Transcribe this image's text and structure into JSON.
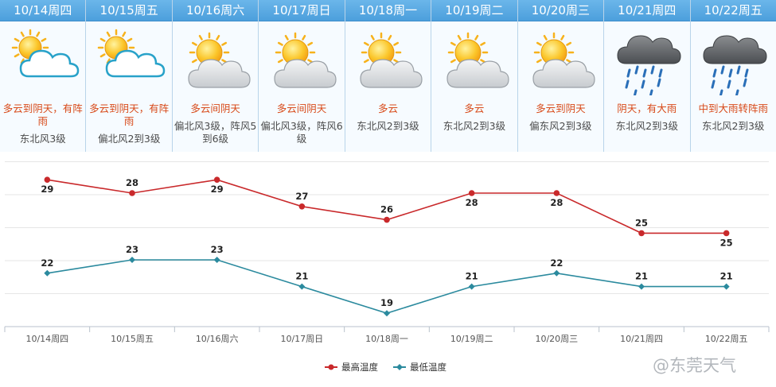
{
  "forecast": [
    {
      "date": "10/14周四",
      "weather": "多云到阴天，有阵雨",
      "wind": "东北风3级",
      "icon": "partly-cloudy-icon"
    },
    {
      "date": "10/15周五",
      "weather": "多云到阴天，有阵雨",
      "wind": "偏北风2到3级",
      "icon": "partly-cloudy-icon"
    },
    {
      "date": "10/16周六",
      "weather": "多云间阴天",
      "wind": "偏北风3级，阵风5到6级",
      "icon": "sun-cloud-icon"
    },
    {
      "date": "10/17周日",
      "weather": "多云间阴天",
      "wind": "偏北风3级，阵风6级",
      "icon": "sun-cloud-icon"
    },
    {
      "date": "10/18周一",
      "weather": "多云",
      "wind": "东北风2到3级",
      "icon": "sun-cloud-icon"
    },
    {
      "date": "10/19周二",
      "weather": "多云",
      "wind": "东北风2到3级",
      "icon": "sun-cloud-icon"
    },
    {
      "date": "10/20周三",
      "weather": "多云到阴天",
      "wind": "偏东风2到3级",
      "icon": "sun-cloud-icon"
    },
    {
      "date": "10/21周四",
      "weather": "阴天，有大雨",
      "wind": "东北风2到3级",
      "icon": "heavy-rain-icon"
    },
    {
      "date": "10/22周五",
      "weather": "中到大雨转阵雨",
      "wind": "东北风2到3级",
      "icon": "heavy-rain-icon"
    }
  ],
  "chart_data": {
    "type": "line",
    "categories": [
      "10/14周四",
      "10/15周五",
      "10/16周六",
      "10/17周日",
      "10/18周一",
      "10/19周二",
      "10/20周三",
      "10/21周四",
      "10/22周五"
    ],
    "series": [
      {
        "name": "最高温度",
        "values": [
          29,
          28,
          29,
          27,
          26,
          28,
          28,
          25,
          25
        ],
        "color": "#c9292b"
      },
      {
        "name": "最低温度",
        "values": [
          22,
          23,
          23,
          21,
          19,
          21,
          22,
          21,
          21
        ],
        "color": "#2b8a9e"
      }
    ],
    "ylim": [
      18,
      30.5
    ],
    "grid": true,
    "legend": "bottom-center",
    "data_labels": true
  },
  "watermark": {
    "text": "@东莞天气"
  }
}
